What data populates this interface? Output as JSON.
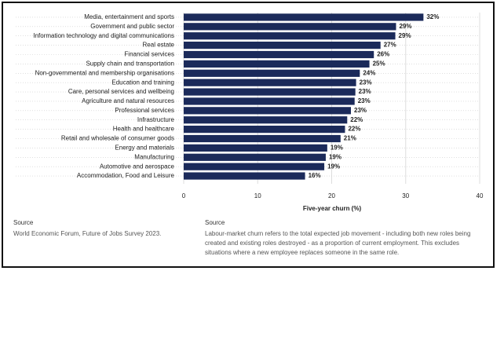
{
  "chart_data": {
    "type": "hbar",
    "categories": [
      "Media, entertainment and sports",
      "Government and public sector",
      "Information technology and digital communications",
      "Real estate",
      "Financial services",
      "Supply chain and transportation",
      "Non-governmental and membership organisations",
      "Education and training",
      "Care, personal services and wellbeing",
      "Agriculture and natural resources",
      "Professional services",
      "Infrastructure",
      "Health and healthcare",
      "Retail and wholesale of consumer goods",
      "Energy and materials",
      "Manufacturing",
      "Automotive and aerospace",
      "Accommodation, Food and Leisure"
    ],
    "values": [
      32.4,
      28.7,
      28.6,
      26.6,
      25.7,
      25.1,
      23.8,
      23.3,
      23.2,
      23.1,
      22.6,
      22.1,
      21.8,
      21.2,
      19.4,
      19.2,
      19.0,
      16.4
    ],
    "value_labels": [
      "32%",
      "29%",
      "29%",
      "27%",
      "26%",
      "25%",
      "24%",
      "23%",
      "23%",
      "23%",
      "23%",
      "22%",
      "22%",
      "21%",
      "19%",
      "19%",
      "19%",
      "16%"
    ],
    "color": "#1b2a5a",
    "xlabel": "Five-year churn (%)",
    "xlim": [
      0,
      40
    ],
    "xticks": [
      0,
      10,
      20,
      30,
      40
    ],
    "grid": true
  },
  "footer": {
    "left": {
      "heading": "Source",
      "text": "World Economic Forum, Future of Jobs Survey 2023."
    },
    "right": {
      "heading": "Source",
      "text": "Labour-market churn refers to the total expected job movement - including both new roles being created and existing roles destroyed - as a proportion of current employment. This excludes situations where a new employee replaces someone in the same role."
    }
  }
}
